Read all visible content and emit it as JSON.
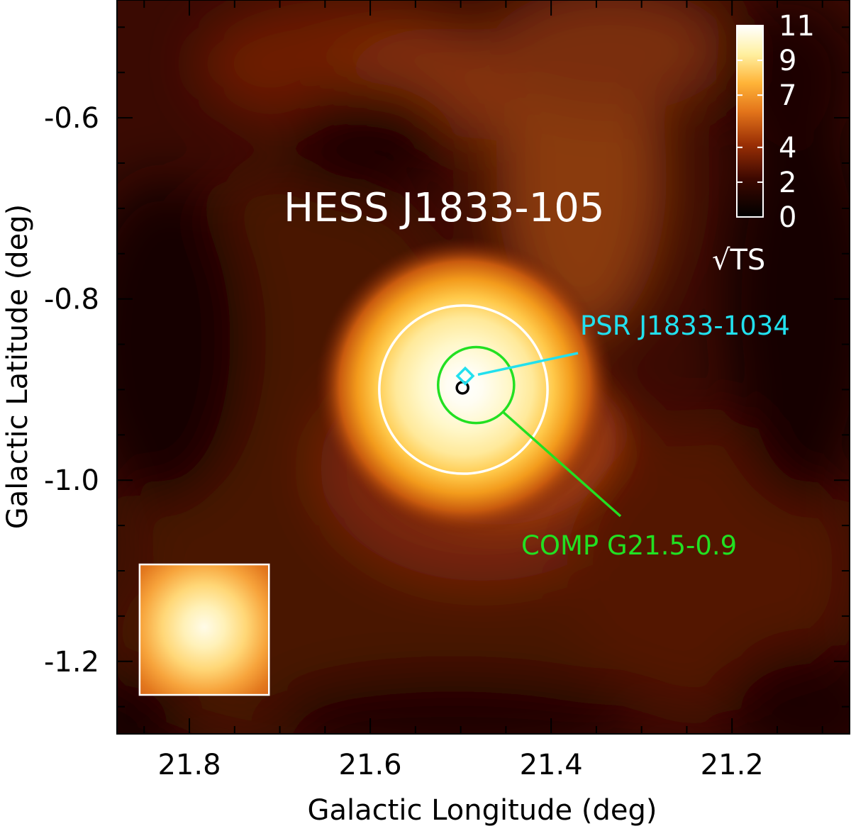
{
  "chart_data": {
    "type": "heatmap",
    "title": "HESS J1833-105",
    "xlabel": "Galactic Longitude (deg)",
    "ylabel": "Galactic Latitude (deg)",
    "xlim": [
      21.88,
      21.07
    ],
    "ylim": [
      -1.28,
      -0.47
    ],
    "x_ticks": [
      21.8,
      21.6,
      21.4,
      21.2
    ],
    "x_tick_labels": [
      "21.8",
      "21.6",
      "21.4",
      "21.2"
    ],
    "y_ticks": [
      -0.6,
      -0.8,
      -1.0,
      -1.2
    ],
    "y_tick_labels": [
      "-0.6",
      "-0.8",
      "-1.0",
      "-1.2"
    ],
    "grid": false,
    "colorbar": {
      "label": "√TS",
      "range": [
        0,
        11
      ],
      "ticks": [
        0,
        2,
        4,
        7,
        9,
        11
      ],
      "tick_labels": [
        "0",
        "2",
        "4",
        "7",
        "9",
        "11"
      ],
      "colormap": "afmhot"
    },
    "annotations": [
      {
        "text": "PSR J1833-1034",
        "color": "#22e0ee",
        "marker": "diamond",
        "x": 21.495,
        "y": -0.885
      },
      {
        "text": "COMP G21.5-0.9",
        "color": "#22e022",
        "marker": "circle",
        "x": 21.483,
        "y": -0.895,
        "radius": 0.042
      }
    ],
    "source_extent": {
      "x": 21.497,
      "y": -0.9,
      "radius": 0.093,
      "color": "#ffffff"
    },
    "best_fit_position": {
      "x": 21.498,
      "y": -0.898,
      "color": "#000000"
    },
    "psf_inset": {
      "x_range": [
        21.855,
        21.712
      ],
      "y_range": [
        -1.093,
        -1.237
      ]
    }
  }
}
